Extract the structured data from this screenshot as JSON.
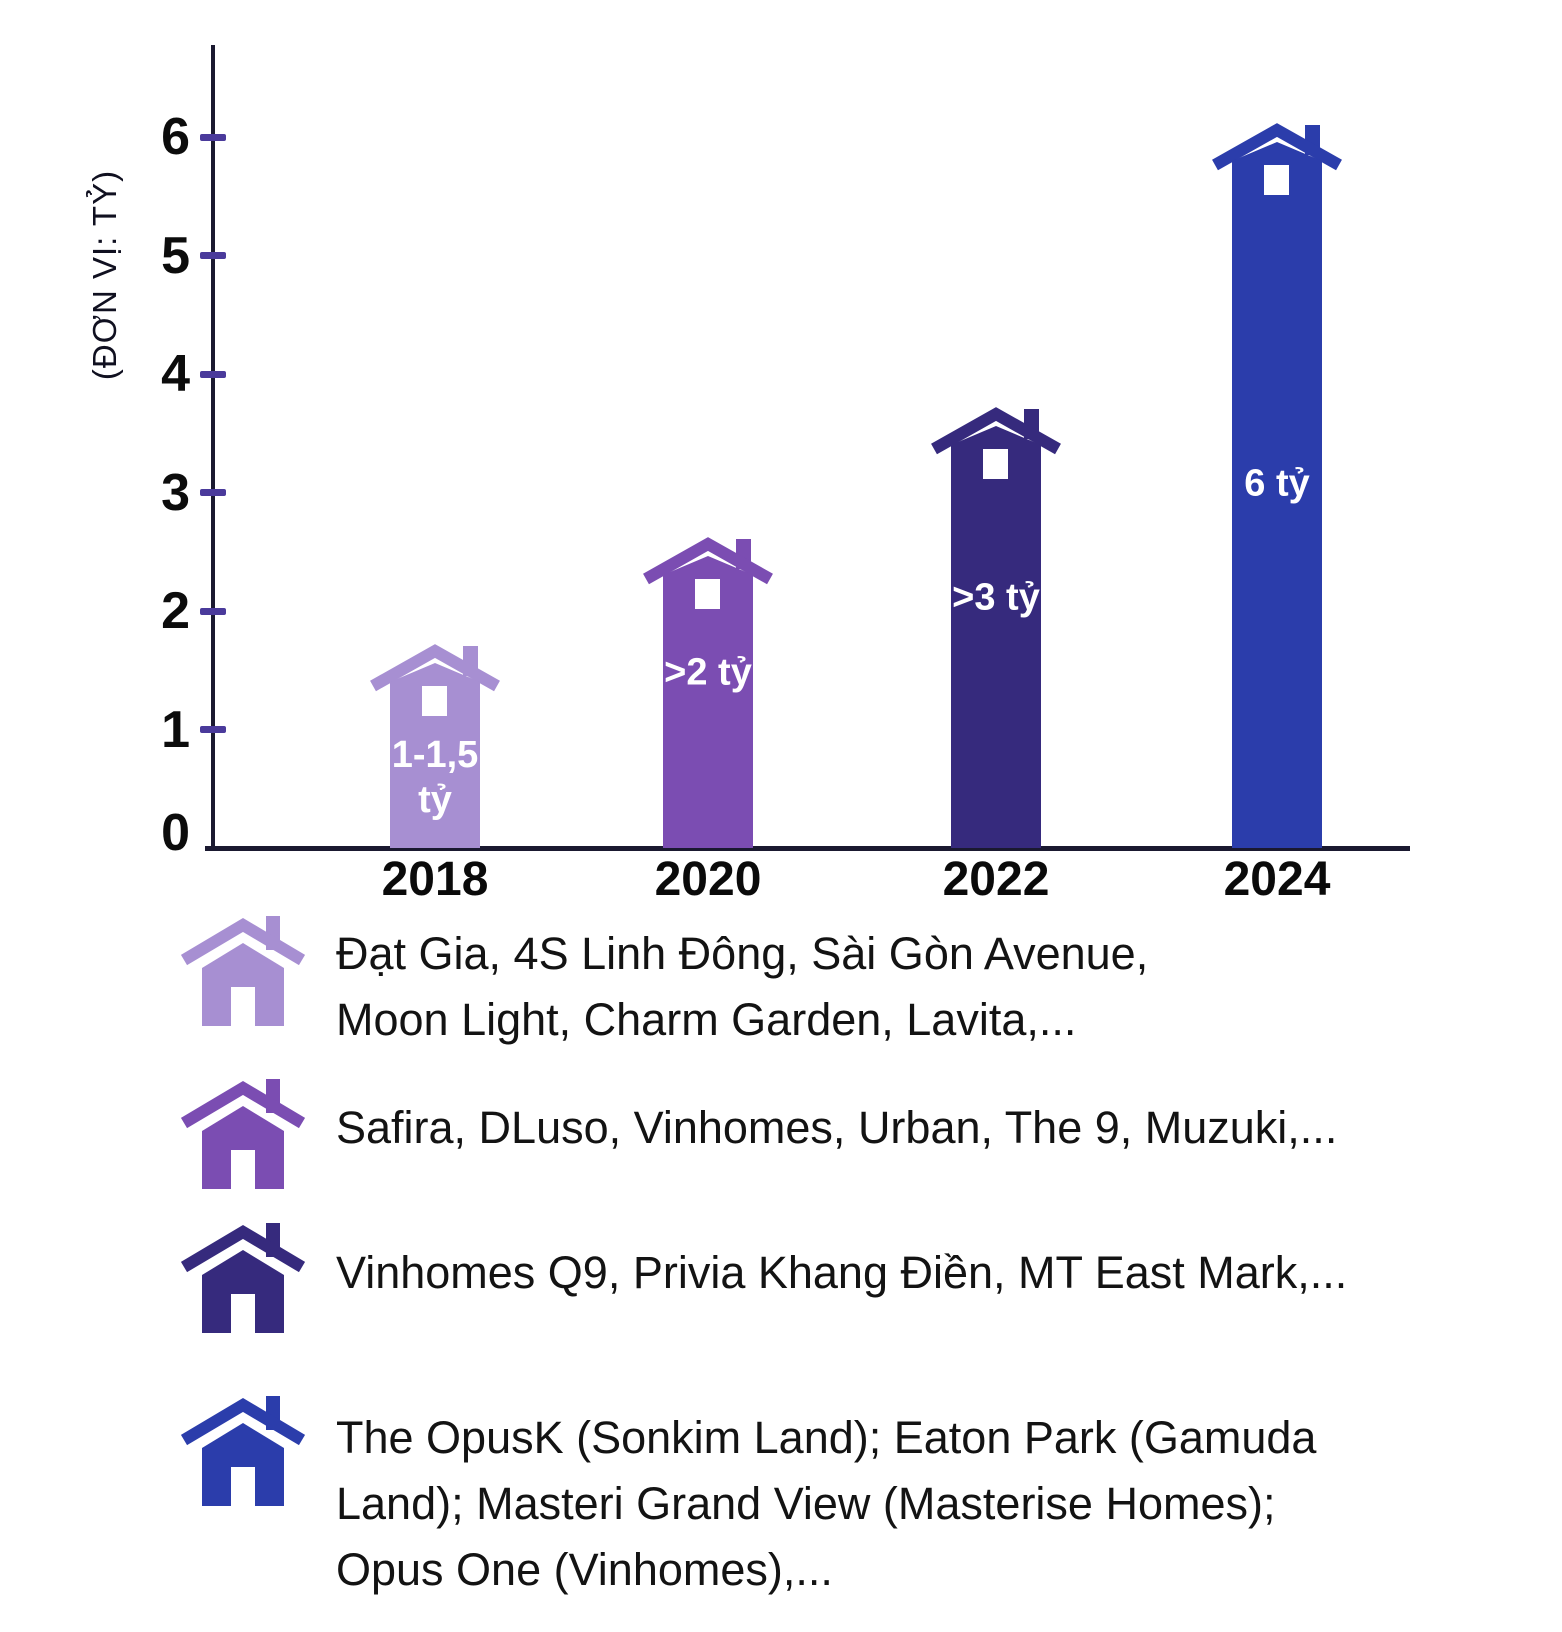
{
  "chart_data": {
    "type": "bar",
    "title": "",
    "xlabel": "",
    "ylabel": "(ĐƠN VỊ: TỶ)",
    "categories": [
      "2018",
      "2020",
      "2022",
      "2024"
    ],
    "values": [
      1.4,
      2.3,
      3.4,
      5.8
    ],
    "bar_labels": [
      "1-1,5\ntỷ",
      ">2 tỷ",
      ">3 tỷ",
      "6 tỷ"
    ],
    "colors": [
      "#a78fd2",
      "#7b4db2",
      "#362a7d",
      "#2b3dab"
    ],
    "ylim": [
      0,
      6.6
    ],
    "yticks": [
      0,
      1,
      2,
      3,
      4,
      5,
      6
    ],
    "grid": false,
    "bar_style": "house-pictogram",
    "axis_color": "#1a1930",
    "tick_color": "#4a3a9b",
    "bar_label_color": "#ffffff",
    "legend_position": "bottom"
  },
  "legend": {
    "items": [
      {
        "icon": "house-icon",
        "color": "#a78fd2",
        "text": "Đạt Gia, 4S Linh Đông, Sài Gòn Avenue,\nMoon Light, Charm Garden, Lavita,..."
      },
      {
        "icon": "house-icon",
        "color": "#7b4db2",
        "text": "Safira, DLuso, Vinhomes, Urban, The 9, Muzuki,..."
      },
      {
        "icon": "house-icon",
        "color": "#362a7d",
        "text": "Vinhomes Q9, Privia Khang Điền, MT East Mark,..."
      },
      {
        "icon": "house-icon",
        "color": "#2b3dab",
        "text": "The OpusK (Sonkim Land); Eaton Park (Gamuda\nLand); Masteri Grand View (Masterise Homes);\nOpus One (Vinhomes),..."
      }
    ]
  }
}
